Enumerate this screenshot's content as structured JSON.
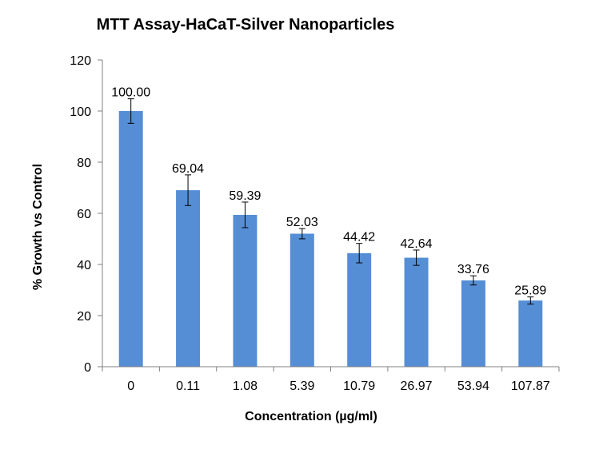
{
  "chart_data": {
    "type": "bar",
    "title": "MTT Assay-HaCaT-Silver Nanoparticles",
    "xlabel": "Concentration (µg/ml)",
    "ylabel": "% Growth vs Control",
    "categories": [
      "0",
      "0.11",
      "1.08",
      "5.39",
      "10.79",
      "26.97",
      "53.94",
      "107.87"
    ],
    "values": [
      100.0,
      69.04,
      59.39,
      52.03,
      44.42,
      42.64,
      33.76,
      25.89
    ],
    "data_labels": [
      "100.00",
      "69.04",
      "59.39",
      "52.03",
      "44.42",
      "42.64",
      "33.76",
      "25.89"
    ],
    "error": [
      4.8,
      6.0,
      5.0,
      2.0,
      3.8,
      3.0,
      1.8,
      1.4
    ],
    "ylim": [
      0,
      120
    ],
    "yticks": [
      "0",
      "20",
      "40",
      "60",
      "80",
      "100",
      "120"
    ],
    "ytick_values": [
      0,
      20,
      40,
      60,
      80,
      100,
      120
    ],
    "bar_color": "#558ed5",
    "grid": false,
    "legend": "none"
  }
}
